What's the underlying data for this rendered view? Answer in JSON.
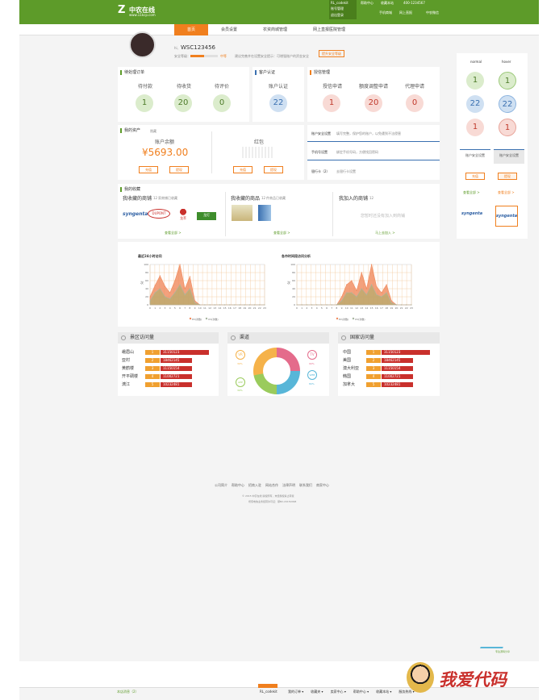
{
  "header": {
    "logo_text": "中农在线",
    "logo_url": "www.11kcp.com",
    "account": "RL_codekit",
    "account_menu": [
      "账号管理",
      "退出登录"
    ],
    "nav1": [
      "帮助中心",
      "联系我们"
    ],
    "nav2": [
      "收藏本站",
      "帮助中心"
    ],
    "phone": "400-1234567",
    "links2": [
      "手机商城",
      "网上直报",
      "中农微信"
    ]
  },
  "menu": [
    "首页",
    "会员设置",
    "农资商城管理",
    "网上直报医院管理"
  ],
  "profile": {
    "user_prefix": "hi,",
    "user_id": "WSC123456",
    "security_label": "安全等级：",
    "security_level": "中等",
    "tip": "建议完善并在设置安全提示：可增强账户的资金安全",
    "upgrade_btn": "提升安全等级"
  },
  "orders": {
    "title": "待处理订单",
    "items": [
      {
        "label": "待付款",
        "value": "1"
      },
      {
        "label": "待收货",
        "value": "20"
      },
      {
        "label": "待评价",
        "value": "0"
      }
    ]
  },
  "auth": {
    "title": "客户认证",
    "label": "账户认证",
    "value": "22"
  },
  "credit": {
    "title": "授信管理",
    "items": [
      {
        "label": "授信申请",
        "value": "1"
      },
      {
        "label": "额度调整申请",
        "value": "20"
      },
      {
        "label": "代理申请",
        "value": "0"
      }
    ]
  },
  "assets": {
    "title": "我的资产",
    "toggle": "隐藏",
    "balance_label": "账户余额",
    "balance": "¥5693.00",
    "redpack_label": "红包",
    "btn_recharge": "充值",
    "btn_withdraw": "提现"
  },
  "security": [
    {
      "title": "账户安全设置",
      "desc": "填写完整，保护您的账户，以免遭到不法侵害"
    },
    {
      "title": "手机号设置",
      "desc": "绑定手机号码，方便找回密码"
    },
    {
      "title": "银行卡（2）",
      "desc": "去银行卡设置"
    }
  ],
  "favorites": {
    "title": "我的收藏",
    "cols": [
      {
        "heading": "我收藏的商铺",
        "count": "12",
        "unit": "家商铺已收藏",
        "more": "查看全部 >"
      },
      {
        "heading": "我收藏的商品",
        "count": "12",
        "unit": "件商品已收藏",
        "more": "查看全部 >"
      },
      {
        "heading": "我加入的商铺",
        "count": "12",
        "unit": "",
        "note": "您暂时还没有加入到商铺",
        "more": "马上去加入 >"
      }
    ],
    "brands": [
      "syngenta",
      "DUPONT",
      "龙萃",
      "龙灯"
    ]
  },
  "side": {
    "normal": "normal",
    "hover": "hover",
    "vals": [
      "1",
      "1",
      "22",
      "22",
      "1",
      "1"
    ],
    "btn_set": "账户安全设置",
    "btn_recharge": "充值",
    "btn_withdraw": "提现",
    "more": "查看全部 >",
    "brand": "syngenta"
  },
  "charts": [
    {
      "title": "最近24小时访问",
      "legend": [
        "PV(次数)",
        "UV(次数)"
      ],
      "ylabel": "次"
    },
    {
      "title": "各市时间段访问分析",
      "legend": [
        "PV(次数)",
        "UV(次数)"
      ],
      "ylabel": "次"
    }
  ],
  "chart_data": [
    {
      "type": "area",
      "title": "最近24小时访问",
      "x": [
        "0",
        "1",
        "2",
        "3",
        "4",
        "5",
        "6",
        "7",
        "8",
        "9",
        "10",
        "11",
        "12",
        "13",
        "14",
        "15",
        "16",
        "17",
        "18",
        "19",
        "20",
        "21",
        "22",
        "23"
      ],
      "ylim": [
        0,
        100
      ],
      "series": [
        {
          "name": "PV(次数)",
          "values": [
            20,
            48,
            72,
            46,
            30,
            60,
            100,
            40,
            70,
            10,
            0,
            0,
            0,
            0,
            0,
            0,
            0,
            0,
            0,
            0,
            0,
            0,
            0,
            0
          ]
        },
        {
          "name": "UV(次数)",
          "values": [
            10,
            30,
            40,
            20,
            15,
            30,
            50,
            25,
            40,
            5,
            0,
            0,
            0,
            0,
            0,
            0,
            0,
            0,
            0,
            0,
            0,
            0,
            0,
            0
          ]
        }
      ]
    },
    {
      "type": "area",
      "title": "各市时间段访问分析",
      "x": [
        "0",
        "1",
        "2",
        "3",
        "4",
        "5",
        "6",
        "7",
        "8",
        "9",
        "10",
        "11",
        "12",
        "13",
        "14",
        "15",
        "16",
        "17",
        "18",
        "19",
        "20",
        "21",
        "22",
        "23"
      ],
      "ylim": [
        0,
        100
      ],
      "series": [
        {
          "name": "PV(次数)",
          "values": [
            0,
            0,
            0,
            0,
            0,
            0,
            0,
            0,
            0,
            20,
            50,
            60,
            35,
            80,
            40,
            100,
            45,
            30,
            50,
            10,
            0,
            0,
            0,
            0
          ]
        },
        {
          "name": "UV(次数)",
          "values": [
            0,
            0,
            0,
            0,
            0,
            0,
            0,
            0,
            0,
            10,
            30,
            30,
            20,
            40,
            25,
            50,
            25,
            20,
            30,
            5,
            0,
            0,
            0,
            0
          ]
        }
      ]
    }
  ],
  "scenic": {
    "title": "景区访问量",
    "rows": [
      [
        "峨眉山",
        "1",
        "31150123"
      ],
      [
        "亚村",
        "2",
        "18462145"
      ],
      [
        "黄鹤楼",
        "3",
        "11150154"
      ],
      [
        "开平碉楼",
        "4",
        "11002721"
      ],
      [
        "漓江",
        "5",
        "10232481"
      ]
    ]
  },
  "channel": {
    "title": "渠道",
    "labels": [
      {
        "name": "VR",
        "pct": "30%"
      },
      {
        "name": "TV",
        "pct": "90%"
      },
      {
        "name": "APP",
        "pct": "30%"
      },
      {
        "name": "WEB",
        "pct": "80%"
      }
    ]
  },
  "country": {
    "title": "国家访问量",
    "rows": [
      [
        "中国",
        "1",
        "31150123"
      ],
      [
        "美国",
        "2",
        "18462145"
      ],
      [
        "澳大利亚",
        "3",
        "11150154"
      ],
      [
        "韩国",
        "4",
        "11002721"
      ],
      [
        "加拿大",
        "5",
        "10232481"
      ]
    ]
  },
  "footer": {
    "links": [
      "公司简介",
      "帮助中心",
      "招商入驻",
      "网站合作",
      "法律声明",
      "联系我们",
      "商家中心"
    ],
    "copy": "© 2015 中农在线 版权所有，未经授权禁止转载",
    "icp": "增值电信业务经营许可证：鄂B2-20150098"
  },
  "bottombar": {
    "collect": "本店消息（2）",
    "account": "RL_codekit",
    "items": [
      "我的订单",
      "收藏夹",
      "卖家中心",
      "帮助中心",
      "收藏本站",
      "服务热线"
    ]
  },
  "watermark": {
    "text": "我爱代码",
    "small": "专注源码分享"
  }
}
